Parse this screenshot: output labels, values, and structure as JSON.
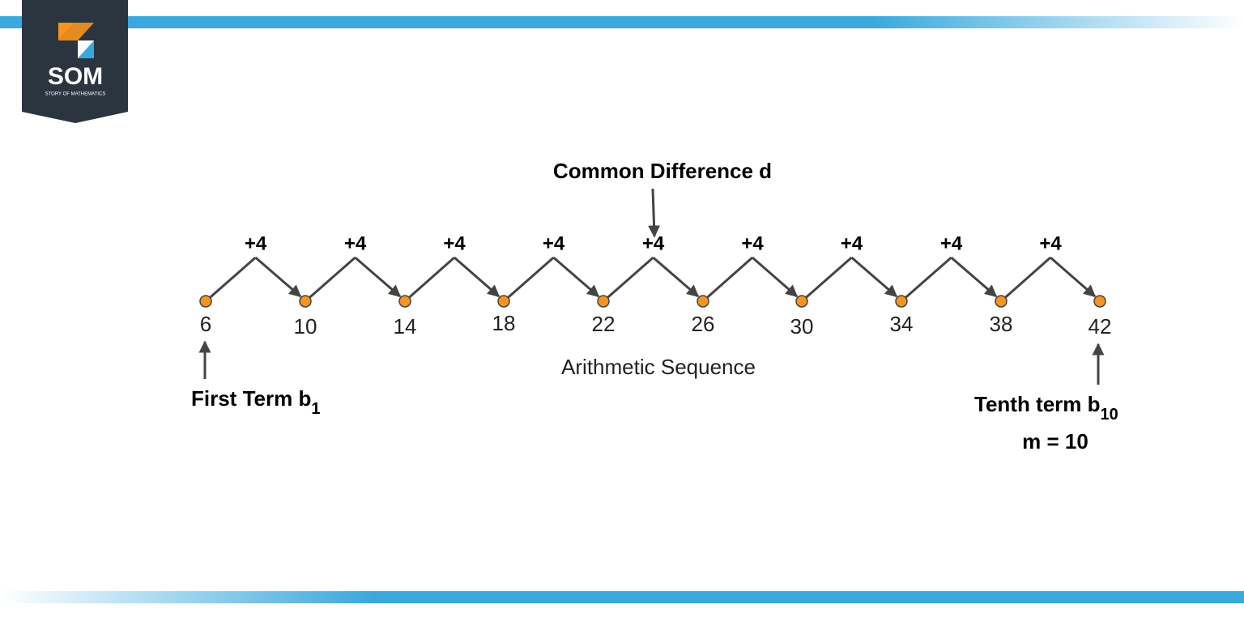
{
  "logo": {
    "title": "SOM",
    "subtitle": "STORY OF MATHEMATICS"
  },
  "annotations": {
    "common_difference": "Common Difference d",
    "first_term": {
      "text": "First Term b",
      "subscript": "1"
    },
    "tenth_term": {
      "text": "Tenth term b",
      "subscript": "10"
    },
    "count": "m = 10"
  },
  "sequence": {
    "terms": [
      6,
      10,
      14,
      18,
      22,
      26,
      30,
      34,
      38,
      42
    ],
    "steps": [
      "+4",
      "+4",
      "+4",
      "+4",
      "+4",
      "+4",
      "+4",
      "+4",
      "+4"
    ],
    "caption": "Arithmetic Sequence"
  }
}
